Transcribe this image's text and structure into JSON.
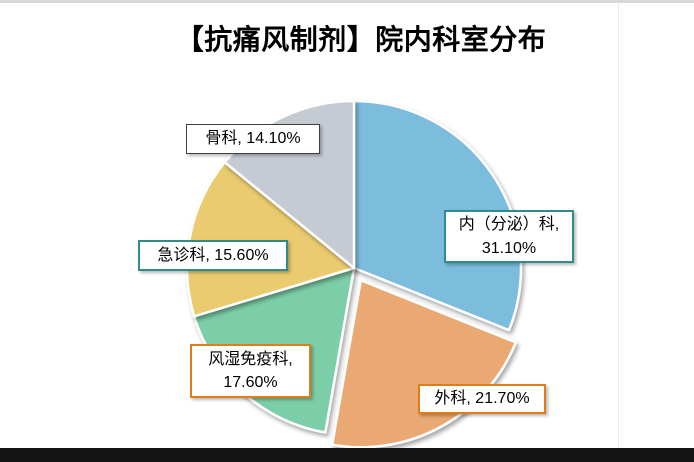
{
  "page": {
    "title": "【抗痛风制剂】院内科室分布"
  },
  "chart_data": {
    "type": "pie",
    "title": "【抗痛风制剂】院内科室分布",
    "direction": "clockwise",
    "start_angle_deg": 0,
    "legend": "none",
    "background": "#FFFFFF",
    "categories": [
      "内（分泌）科",
      "外科",
      "风湿免疫科",
      "急诊科",
      "骨科"
    ],
    "values": [
      31.1,
      21.7,
      17.6,
      15.6,
      14.1
    ],
    "value_labels": [
      "31.10%",
      "21.70%",
      "17.60%",
      "15.60%",
      "14.10%"
    ],
    "colors": [
      "#7CBCDD",
      "#EAA873",
      "#7BCEA8",
      "#EBCB6F",
      "#C5CAD3"
    ],
    "slice_border_color": "#FFFFFF",
    "exploded_slice": "外科",
    "exploded_index": 1,
    "labels": [
      {
        "line1": "内（分泌）科,",
        "line2": "31.10%",
        "border_color": "#2E8C8A"
      },
      {
        "line1": "外科, 21.70%",
        "border_color": "#E07D15"
      },
      {
        "line1": "风湿免疫科,",
        "line2": "17.60%",
        "border_color": "#E07D15"
      },
      {
        "line1": "急诊科, 15.60%",
        "border_color": "#2E8C8A"
      },
      {
        "line1": "骨科, 14.10%",
        "border_color": "#3F3F3F"
      }
    ]
  }
}
